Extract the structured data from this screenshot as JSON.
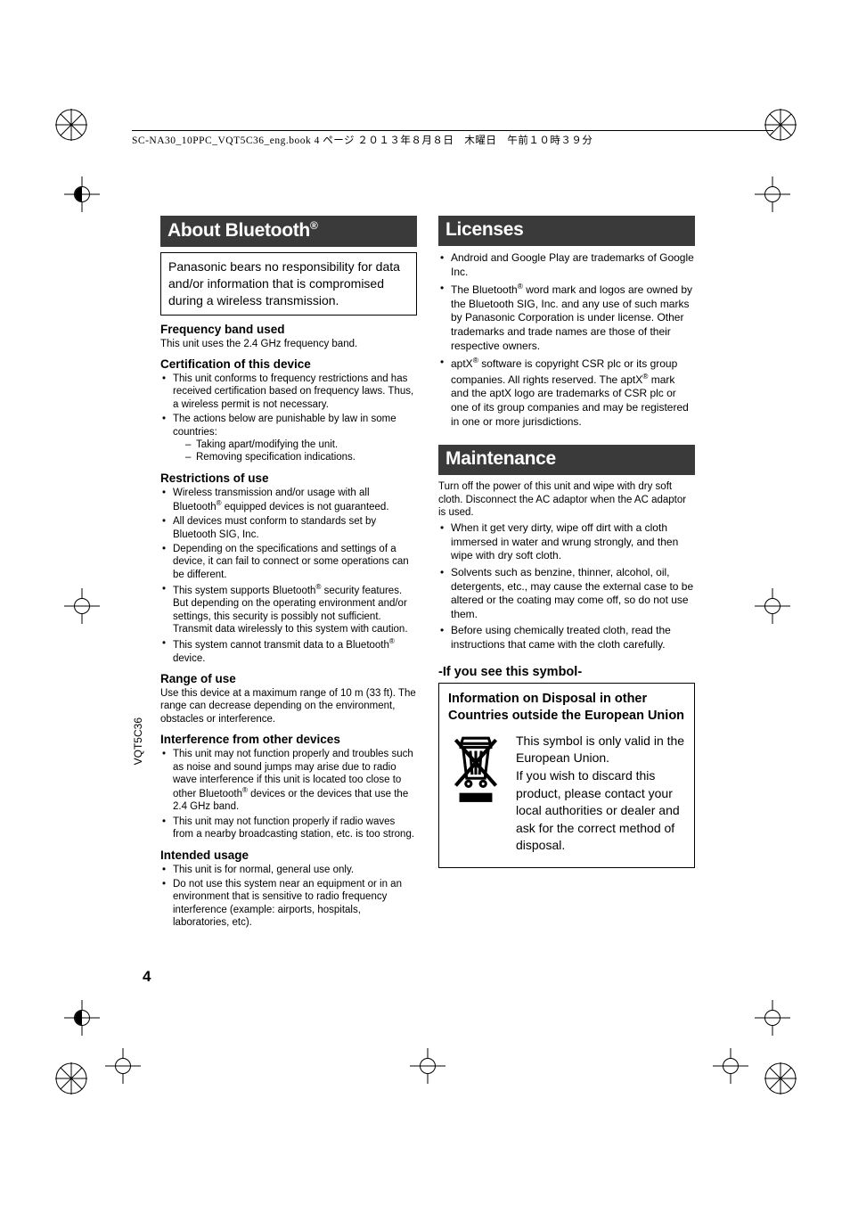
{
  "header_line": "SC-NA30_10PPC_VQT5C36_eng.book  4 ページ  ２０１３年８月８日　木曜日　午前１０時３９分",
  "spine_code": "VQT5C36",
  "page_number": "4",
  "left": {
    "title_html": "About Bluetooth<sup>®</sup>",
    "box": "Panasonic bears no responsibility for data and/or information that is compromised during a wireless transmission.",
    "s1_head": "Frequency band used",
    "s1_body": "This unit uses the 2.4 GHz frequency band.",
    "s2_head": "Certification of this device",
    "s2_b1": "This unit conforms to frequency restrictions and has received certification based on frequency laws. Thus, a wireless permit is not necessary.",
    "s2_b2": "The actions below are punishable by law in some countries:",
    "s2_d1": "Taking apart/modifying the unit.",
    "s2_d2": "Removing specification indications.",
    "s3_head": "Restrictions of use",
    "s3_b1_html": "Wireless transmission and/or usage with all Bluetooth<sup>®</sup> equipped devices is not guaranteed.",
    "s3_b2": "All devices must conform to standards set by Bluetooth SIG, Inc.",
    "s3_b3": "Depending on the specifications and settings of a device, it can fail to connect or some operations can be different.",
    "s3_b4_html": "This system supports Bluetooth<sup>®</sup> security features. But depending on the operating environment and/or settings, this security is possibly not sufficient. Transmit data wirelessly to this system with caution.",
    "s3_b5_html": "This system cannot transmit data to a Bluetooth<sup>®</sup> device.",
    "s4_head": "Range of use",
    "s4_body": "Use this device at a maximum range of 10 m (33 ft). The range can decrease depending on the environment, obstacles or interference.",
    "s5_head": "Interference from other devices",
    "s5_b1_html": "This unit may not function properly and troubles such as noise and sound jumps may arise due to radio wave interference if this unit is located too close to other Bluetooth<sup>®</sup> devices or the devices that use the 2.4 GHz band.",
    "s5_b2": "This unit may not function properly if radio waves from a nearby broadcasting station, etc. is too strong.",
    "s6_head": "Intended usage",
    "s6_b1": "This unit is for normal, general use only.",
    "s6_b2": "Do not use this system near an equipment or in an environment that is sensitive to radio frequency interference (example: airports, hospitals, laboratories, etc)."
  },
  "right": {
    "lic_title": "Licenses",
    "lic_b1": "Android and Google Play are trademarks of Google Inc.",
    "lic_b2_html": "The Bluetooth<sup>®</sup> word mark and logos are owned by the Bluetooth SIG, Inc. and any use of such marks by Panasonic Corporation is under license. Other trademarks and trade names are those of their respective owners.",
    "lic_b3_html": "aptX<sup>®</sup> software is copyright CSR plc or its group companies. All rights reserved. The aptX<sup>®</sup> mark and the aptX logo are trademarks of CSR plc or one of its group companies and may be registered in one or more jurisdictions.",
    "maint_title": "Maintenance",
    "maint_intro": "Turn off the power of this unit and wipe with dry soft cloth. Disconnect the AC adaptor when the AC adaptor is used.",
    "maint_b1": "When it get very dirty, wipe off dirt with a cloth immersed in water and wrung strongly, and then wipe with dry soft cloth.",
    "maint_b2": "Solvents such as benzine, thinner, alcohol, oil, detergents, etc., may cause the external case to be altered or the coating may come off, so do not use them.",
    "maint_b3": " Before using chemically treated cloth, read the instructions that came with the cloth carefully.",
    "sym_head": "-If you see this symbol-",
    "sym_title": "Information on Disposal in other Countries outside the European Union",
    "sym_text": "This symbol is only valid in the European Union.\nIf you wish to discard this product, please contact your local authorities or dealer and ask for the correct method of disposal."
  },
  "colors": {
    "heading_bg": "#3a3a3a",
    "heading_fg": "#ffffff",
    "text": "#000000",
    "page_bg": "#ffffff"
  }
}
